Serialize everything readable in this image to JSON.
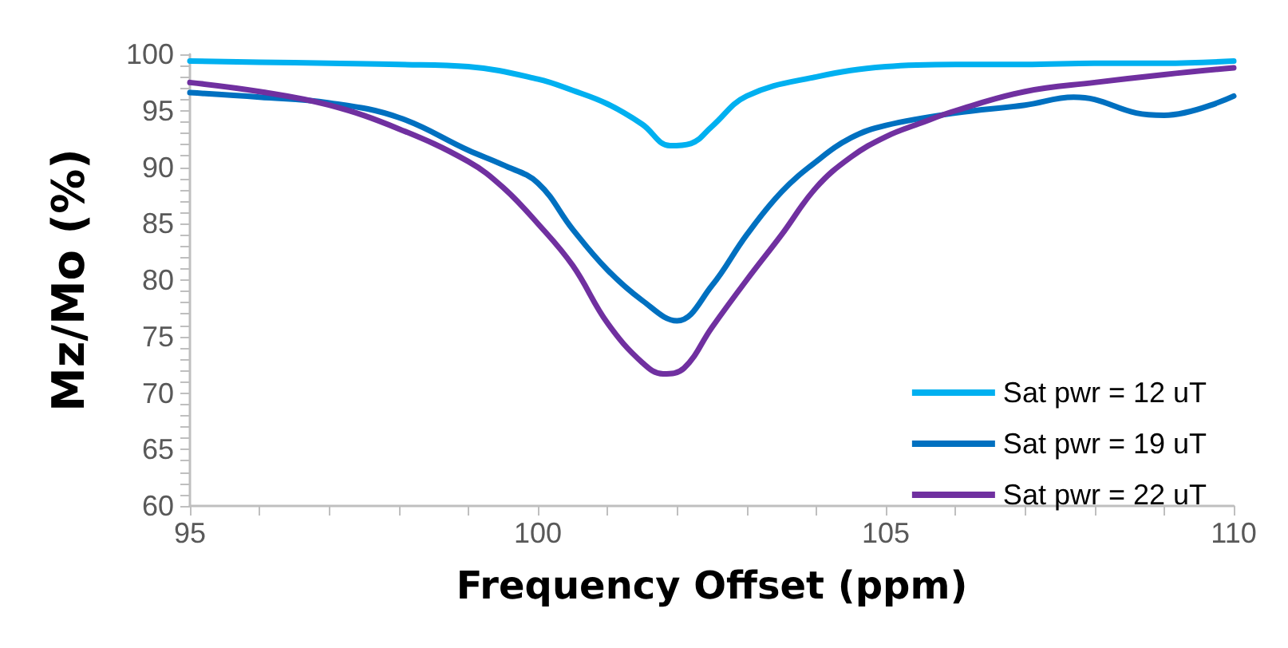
{
  "chart_data": {
    "type": "line",
    "xlabel": "Frequency Offset (ppm)",
    "ylabel": "Mz/Mo (%)",
    "xlim": [
      95,
      110
    ],
    "ylim": [
      60,
      100
    ],
    "xticks": [
      95,
      {
        "value": 96,
        "label": null
      },
      {
        "value": 97,
        "label": null
      },
      {
        "value": 98,
        "label": null
      },
      {
        "value": 99,
        "label": null
      },
      100,
      {
        "value": 101,
        "label": null
      },
      {
        "value": 102,
        "label": null
      },
      {
        "value": 103,
        "label": null
      },
      {
        "value": 104,
        "label": null
      },
      105,
      {
        "value": 106,
        "label": null
      },
      {
        "value": 107,
        "label": null
      },
      {
        "value": 108,
        "label": null
      },
      {
        "value": 109,
        "label": null
      },
      110
    ],
    "yticks": [
      60,
      {
        "value": 61,
        "label": null
      },
      {
        "value": 62,
        "label": null
      },
      {
        "value": 63,
        "label": null
      },
      {
        "value": 64,
        "label": null
      },
      65,
      {
        "value": 66,
        "label": null
      },
      {
        "value": 67,
        "label": null
      },
      {
        "value": 68,
        "label": null
      },
      {
        "value": 69,
        "label": null
      },
      70,
      {
        "value": 71,
        "label": null
      },
      {
        "value": 72,
        "label": null
      },
      {
        "value": 73,
        "label": null
      },
      {
        "value": 74,
        "label": null
      },
      75,
      {
        "value": 76,
        "label": null
      },
      {
        "value": 77,
        "label": null
      },
      {
        "value": 78,
        "label": null
      },
      {
        "value": 79,
        "label": null
      },
      80,
      {
        "value": 81,
        "label": null
      },
      {
        "value": 82,
        "label": null
      },
      {
        "value": 83,
        "label": null
      },
      {
        "value": 84,
        "label": null
      },
      85,
      {
        "value": 86,
        "label": null
      },
      {
        "value": 87,
        "label": null
      },
      {
        "value": 88,
        "label": null
      },
      {
        "value": 89,
        "label": null
      },
      90,
      {
        "value": 91,
        "label": null
      },
      {
        "value": 92,
        "label": null
      },
      {
        "value": 93,
        "label": null
      },
      {
        "value": 94,
        "label": null
      },
      95,
      {
        "value": 96,
        "label": null
      },
      {
        "value": 97,
        "label": null
      },
      {
        "value": 98,
        "label": null
      },
      {
        "value": 99,
        "label": null
      },
      100
    ],
    "grid": false,
    "legend": "bottom right",
    "marker": "none",
    "line_style": "solid",
    "series": [
      {
        "name": "Sat pwr = 12 uT",
        "color": "#00b0f0",
        "x": [
          95,
          96,
          97,
          98,
          99,
          100,
          100.5,
          101,
          101.5,
          101.9,
          102.2,
          102.5,
          103,
          104,
          105,
          106,
          107,
          108,
          109,
          110
        ],
        "values": [
          99.4,
          99.3,
          99.2,
          99.1,
          98.9,
          97.8,
          96.8,
          95.6,
          93.8,
          91.9,
          92.1,
          93.6,
          96.3,
          98,
          98.9,
          99.1,
          99.1,
          99.2,
          99.2,
          99.4
        ]
      },
      {
        "name": "Sat pwr = 19 uT",
        "color": "#0070c0",
        "x": [
          95,
          96,
          97,
          98,
          99,
          99.5,
          100,
          100.5,
          101,
          101.5,
          102,
          102.5,
          103,
          103.5,
          104,
          104.5,
          105,
          106,
          107,
          107.7,
          108,
          108.6,
          109,
          110
        ],
        "values": [
          96.6,
          96.2,
          95.7,
          94.4,
          91.5,
          90.2,
          88.6,
          84.5,
          80.9,
          78.2,
          76.4,
          79.5,
          84,
          87.8,
          90.5,
          92.6,
          93.7,
          94.8,
          95.5,
          96.2,
          96,
          94.8,
          94.6,
          96.3
        ]
      },
      {
        "name": "Sat pwr = 22 uT",
        "color": "#7030a0",
        "x": [
          95,
          96,
          97,
          98,
          99,
          99.5,
          100,
          100.5,
          101,
          101.5,
          101.8,
          102.1,
          102.5,
          103,
          103.5,
          104,
          104.5,
          105,
          105.5,
          106,
          107,
          108,
          109,
          110
        ],
        "values": [
          97.5,
          96.7,
          95.5,
          93.4,
          90.5,
          88.2,
          85,
          81.3,
          76.2,
          72.7,
          71.7,
          72.2,
          75.8,
          80,
          84,
          88.2,
          90.9,
          92.7,
          93.9,
          95,
          96.7,
          97.5,
          98.2,
          98.8
        ]
      }
    ]
  }
}
